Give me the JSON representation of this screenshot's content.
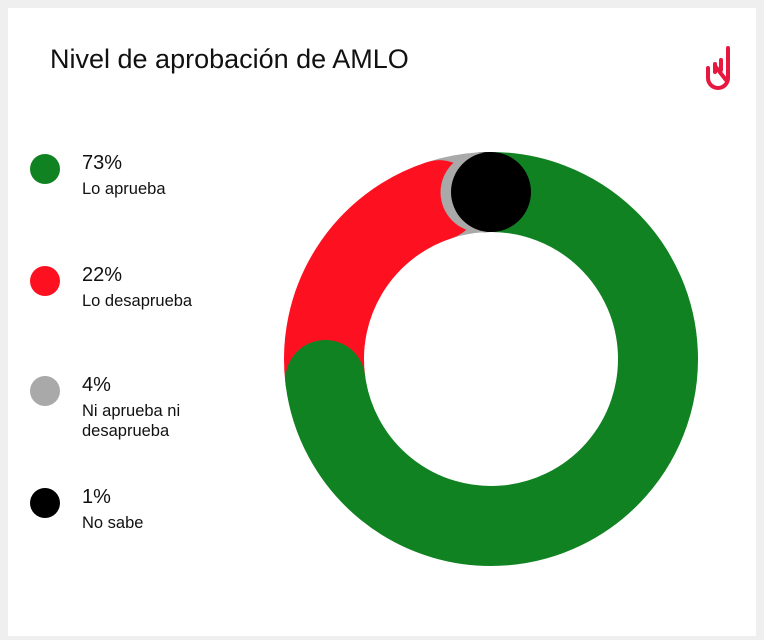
{
  "title": "Nivel de aprobación de AMLO",
  "logo": {
    "icon": "raised-hand-logo",
    "color": "#e8173f"
  },
  "chart_data": {
    "type": "pie",
    "variant": "donut",
    "title": "Nivel de aprobación de AMLO",
    "categories": [
      "Lo aprueba",
      "Lo desaprueba",
      "Ni aprueba ni desaprueba",
      "No sabe"
    ],
    "values": [
      73,
      22,
      4,
      1
    ],
    "value_labels": [
      "73%",
      "22%",
      "4%",
      "1%"
    ],
    "colors": [
      "#118221",
      "#fd1120",
      "#a9a9a9",
      "#000000"
    ],
    "legend_placement": "left"
  }
}
